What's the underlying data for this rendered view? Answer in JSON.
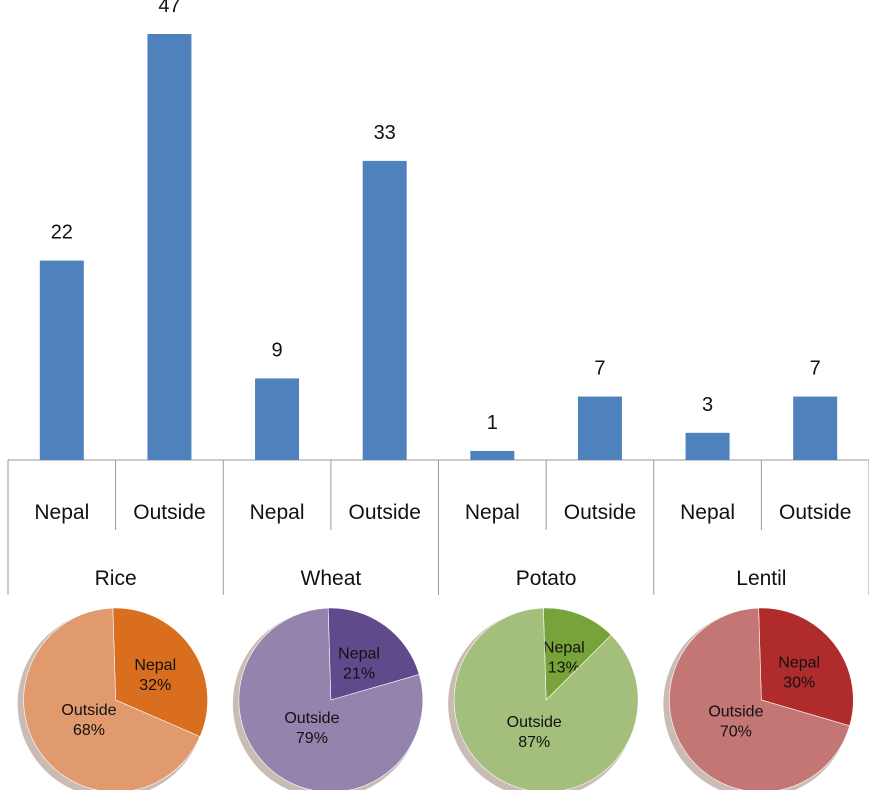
{
  "chart_data": [
    {
      "type": "bar",
      "groups": [
        "Rice",
        "Wheat",
        "Potato",
        "Lentil"
      ],
      "categories": [
        "Nepal",
        "Outside",
        "Nepal",
        "Outside",
        "Nepal",
        "Outside",
        "Nepal",
        "Outside"
      ],
      "values": [
        22,
        47,
        9,
        33,
        1,
        7,
        3,
        7
      ],
      "bar_color": "#4f81bd",
      "ylim": [
        0,
        47
      ],
      "grid": false,
      "legend": "none",
      "data_labels": [
        "22",
        "47",
        "9",
        "33",
        "1",
        "7",
        "3",
        "7"
      ]
    },
    {
      "type": "pie",
      "title": "Rice",
      "slices": [
        {
          "label": "Nepal",
          "value": 32,
          "text": "32%",
          "color": "#d86e1e"
        },
        {
          "label": "Outside",
          "value": 68,
          "text": "68%",
          "color": "#e09a6e"
        }
      ]
    },
    {
      "type": "pie",
      "title": "Wheat",
      "slices": [
        {
          "label": "Nepal",
          "value": 21,
          "text": "21%",
          "color": "#5f4a8b"
        },
        {
          "label": "Outside",
          "value": 79,
          "text": "79%",
          "color": "#9384ad"
        }
      ]
    },
    {
      "type": "pie",
      "title": "Potato",
      "slices": [
        {
          "label": "Nepal",
          "value": 13,
          "text": "13%",
          "color": "#77a33a"
        },
        {
          "label": "Outside",
          "value": 87,
          "text": "87%",
          "color": "#a3bf7b"
        }
      ]
    },
    {
      "type": "pie",
      "title": "Lentil",
      "slices": [
        {
          "label": "Nepal",
          "value": 30,
          "text": "30%",
          "color": "#b02c2c"
        },
        {
          "label": "Outside",
          "value": 70,
          "text": "70%",
          "color": "#c47674"
        }
      ]
    }
  ]
}
